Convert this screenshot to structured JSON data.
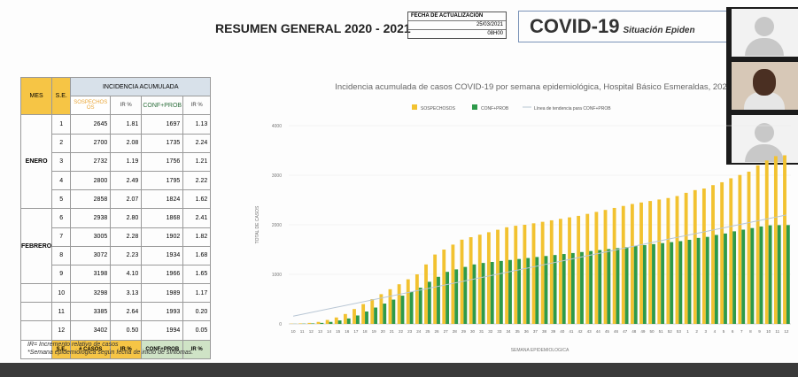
{
  "header": {
    "title": "RESUMEN GENERAL 2020 - 2021",
    "update_label": "FECHA DE ACTUALIZACIÓN",
    "update_date": "25/03/2021",
    "update_time": "08H00",
    "brand_title": "COVID-19",
    "brand_subtitle": "Situación Epiden"
  },
  "table": {
    "col_mes": "MES",
    "col_se": "S.E.",
    "group_header": "INCIDENCIA ACUMULADA",
    "col_sosp": "SOSPECHOS OS",
    "col_ir1": "IR %",
    "col_conf": "CONF+PROB",
    "col_ir2": "IR %",
    "months": [
      {
        "name": "ENERO",
        "rows": 5
      },
      {
        "name": "FEBRERO",
        "rows": 4
      }
    ],
    "rows": [
      {
        "se": "1",
        "sosp": "2645",
        "ir1": "1.81",
        "conf": "1697",
        "ir2": "1.13"
      },
      {
        "se": "2",
        "sosp": "2700",
        "ir1": "2.08",
        "conf": "1735",
        "ir2": "2.24"
      },
      {
        "se": "3",
        "sosp": "2732",
        "ir1": "1.19",
        "conf": "1756",
        "ir2": "1.21"
      },
      {
        "se": "4",
        "sosp": "2800",
        "ir1": "2.49",
        "conf": "1795",
        "ir2": "2.22"
      },
      {
        "se": "5",
        "sosp": "2858",
        "ir1": "2.07",
        "conf": "1824",
        "ir2": "1.62"
      },
      {
        "se": "6",
        "sosp": "2938",
        "ir1": "2.80",
        "conf": "1868",
        "ir2": "2.41"
      },
      {
        "se": "7",
        "sosp": "3005",
        "ir1": "2.28",
        "conf": "1902",
        "ir2": "1.82"
      },
      {
        "se": "8",
        "sosp": "3072",
        "ir1": "2.23",
        "conf": "1934",
        "ir2": "1.68"
      },
      {
        "se": "9",
        "sosp": "3198",
        "ir1": "4.10",
        "conf": "1966",
        "ir2": "1.65"
      },
      {
        "se": "10",
        "sosp": "3298",
        "ir1": "3.13",
        "conf": "1989",
        "ir2": "1.17"
      },
      {
        "se": "11",
        "sosp": "3385",
        "ir1": "2.64",
        "conf": "1993",
        "ir2": "0.20"
      },
      {
        "se": "12",
        "sosp": "3402",
        "ir1": "0.50",
        "conf": "1994",
        "ir2": "0.05"
      }
    ],
    "footer": {
      "se": "S.E.",
      "casos": "# CASOS",
      "ir1": "IR %",
      "conf": "CONF+PROB",
      "ir2": "IR %"
    }
  },
  "notes": {
    "line1": "IR= Incremento relativo de casos",
    "line2": "*Semana epidemiológica según fecha de inicio de síntomas."
  },
  "colors": {
    "sosp": "#f2c230",
    "conf": "#2e9a4a",
    "trend": "#b8c6d4",
    "header_yellow": "#f6c545"
  },
  "chart_data": {
    "type": "bar",
    "title": "Incidencia acumulada de casos COVID-19 por semana epidemiológica, Hospital Básico Esmeraldas, 202",
    "xlabel": "SEMANA EPIDEMIOLOGICA",
    "ylabel": "TOTAL DE CASOS",
    "ylim": [
      0,
      4000
    ],
    "yticks": [
      0,
      1000,
      2000,
      3000,
      4000
    ],
    "legend": [
      "SOSPECHOSOS",
      "CONF+PROB",
      "Línea de tendencia para CONF+PROB"
    ],
    "legend_position": "top",
    "categories": [
      "10",
      "11",
      "12",
      "13",
      "14",
      "15",
      "16",
      "17",
      "18",
      "19",
      "20",
      "21",
      "22",
      "23",
      "24",
      "25",
      "26",
      "27",
      "28",
      "29",
      "30",
      "31",
      "32",
      "33",
      "34",
      "35",
      "36",
      "37",
      "38",
      "39",
      "40",
      "41",
      "42",
      "43",
      "44",
      "45",
      "46",
      "47",
      "48",
      "49",
      "50",
      "51",
      "52",
      "53",
      "1",
      "2",
      "3",
      "4",
      "5",
      "6",
      "7",
      "8",
      "9",
      "10",
      "11",
      "12"
    ],
    "series": [
      {
        "name": "SOSPECHOSOS",
        "values": [
          5,
          10,
          20,
          40,
          80,
          130,
          200,
          300,
          400,
          500,
          600,
          700,
          800,
          900,
          1000,
          1200,
          1400,
          1500,
          1600,
          1700,
          1750,
          1800,
          1850,
          1900,
          1950,
          1980,
          2000,
          2030,
          2060,
          2090,
          2120,
          2150,
          2180,
          2220,
          2260,
          2300,
          2340,
          2380,
          2420,
          2450,
          2480,
          2510,
          2540,
          2580,
          2645,
          2700,
          2732,
          2800,
          2858,
          2938,
          3005,
          3072,
          3198,
          3298,
          3385,
          3402
        ]
      },
      {
        "name": "CONF+PROB",
        "values": [
          2,
          5,
          10,
          20,
          40,
          70,
          110,
          170,
          250,
          330,
          410,
          490,
          570,
          650,
          730,
          850,
          950,
          1050,
          1100,
          1150,
          1200,
          1230,
          1250,
          1270,
          1290,
          1310,
          1330,
          1350,
          1370,
          1390,
          1410,
          1430,
          1450,
          1470,
          1490,
          1510,
          1530,
          1550,
          1570,
          1590,
          1610,
          1630,
          1650,
          1670,
          1697,
          1735,
          1756,
          1795,
          1824,
          1868,
          1902,
          1934,
          1966,
          1989,
          1993,
          1994
        ]
      }
    ]
  }
}
